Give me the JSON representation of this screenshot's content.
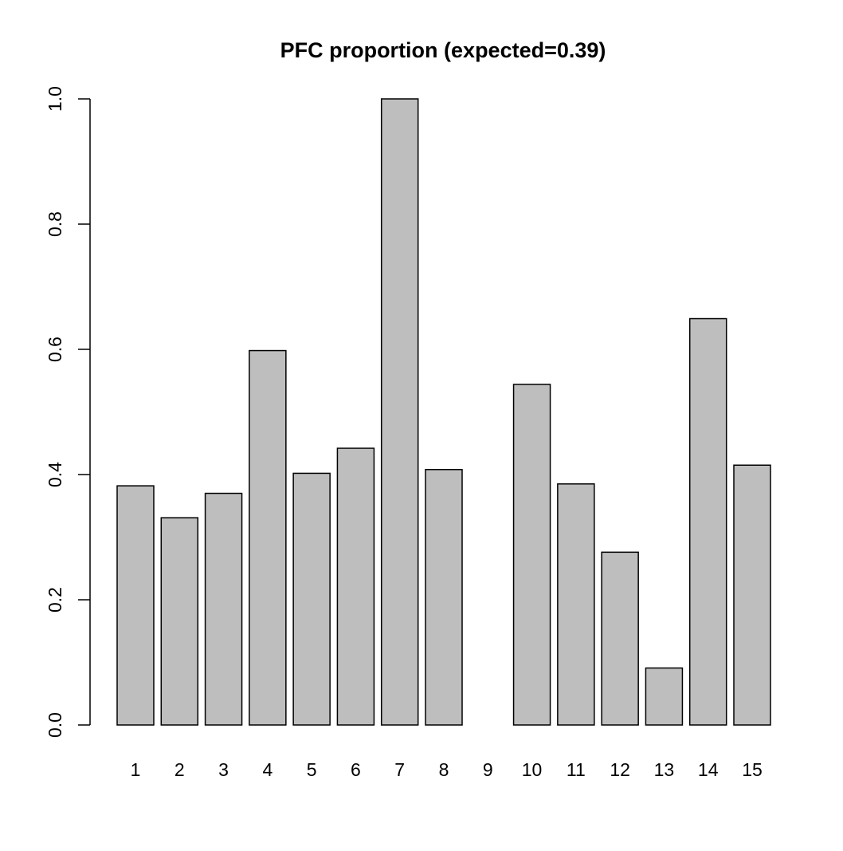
{
  "chart_data": {
    "type": "bar",
    "title": "PFC proportion (expected=0.39)",
    "xlabel": "",
    "ylabel": "",
    "categories": [
      "1",
      "2",
      "3",
      "4",
      "5",
      "6",
      "7",
      "8",
      "9",
      "10",
      "11",
      "12",
      "13",
      "14",
      "15"
    ],
    "values": [
      0.382,
      0.331,
      0.37,
      0.598,
      0.402,
      0.442,
      1.0,
      0.408,
      0.0,
      0.544,
      0.385,
      0.276,
      0.091,
      0.649,
      0.415
    ],
    "ylim": [
      0,
      1.0
    ],
    "yticks": [
      0.0,
      0.2,
      0.4,
      0.6,
      0.8,
      1.0
    ],
    "ytick_labels": [
      "0.0",
      "0.2",
      "0.4",
      "0.6",
      "0.8",
      "1.0"
    ],
    "grid": false,
    "legend": "none",
    "colors": {
      "bar_fill": "#bebebe",
      "bar_stroke": "#000000",
      "axis": "#000000",
      "background": "#ffffff"
    }
  }
}
